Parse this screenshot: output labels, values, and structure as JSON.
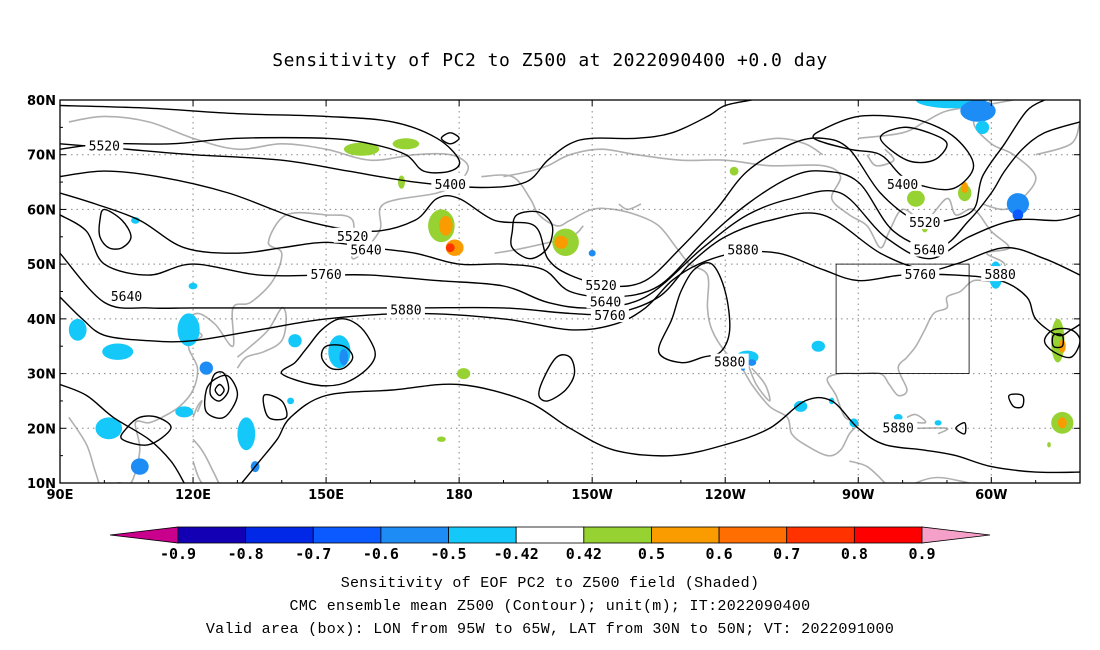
{
  "title": "Sensitivity of PC2 to Z500 at 2022090400 +0.0 day",
  "lat_labels": [
    "80N",
    "70N",
    "60N",
    "50N",
    "40N",
    "30N",
    "20N",
    "10N"
  ],
  "lon_labels": [
    "90E",
    "120E",
    "150E",
    "180",
    "150W",
    "120W",
    "90W",
    "60W"
  ],
  "contour_labels": [
    {
      "text": "5520",
      "lon": 100,
      "lat": 71.5
    },
    {
      "text": "5400",
      "lon": 178,
      "lat": 64.5
    },
    {
      "text": "5520",
      "lon": 156,
      "lat": 55.0
    },
    {
      "text": "5640",
      "lon": 159,
      "lat": 52.5
    },
    {
      "text": "5760",
      "lon": 150,
      "lat": 48.0
    },
    {
      "text": "5640",
      "lon": 105,
      "lat": 44.0
    },
    {
      "text": "5880",
      "lon": 168,
      "lat": 41.5
    },
    {
      "text": "5520",
      "lon": 212,
      "lat": 46.0
    },
    {
      "text": "5640",
      "lon": 213,
      "lat": 43.0
    },
    {
      "text": "5760",
      "lon": 214,
      "lat": 40.5
    },
    {
      "text": "5880",
      "lon": 244,
      "lat": 52.5
    },
    {
      "text": "5880",
      "lon": 241,
      "lat": 32.0
    },
    {
      "text": "5400",
      "lon": 280,
      "lat": 64.5
    },
    {
      "text": "5520",
      "lon": 285,
      "lat": 57.5
    },
    {
      "text": "5640",
      "lon": 286,
      "lat": 52.5
    },
    {
      "text": "5760",
      "lon": 284,
      "lat": 48.0
    },
    {
      "text": "5880",
      "lon": 302,
      "lat": 48.0
    },
    {
      "text": "5880",
      "lon": 279,
      "lat": 20.0
    }
  ],
  "colorbar": {
    "labels": [
      "-0.9",
      "-0.8",
      "-0.7",
      "-0.6",
      "-0.5",
      "-0.42",
      "0.42",
      "0.5",
      "0.6",
      "0.7",
      "0.8",
      "0.9"
    ],
    "colors": [
      "#c8008c",
      "#1400b4",
      "#0028e6",
      "#0a5aff",
      "#1e8cf5",
      "#14c8fa",
      "#ffffff",
      "#96d232",
      "#fa9b00",
      "#ff6e00",
      "#ff3200",
      "#ff0000",
      "#f5a0c8"
    ]
  },
  "box": {
    "lon_min": 265,
    "lon_max": 295,
    "lat_min": 30,
    "lat_max": 50
  },
  "captions": [
    "Sensitivity of EOF PC2 to Z500 field (Shaded)",
    "CMC ensemble mean Z500 (Contour); unit(m); IT:2022090400",
    "Valid area (box): LON from 95W to 65W, LAT from 30N to 50N; VT: 2022091000"
  ]
}
